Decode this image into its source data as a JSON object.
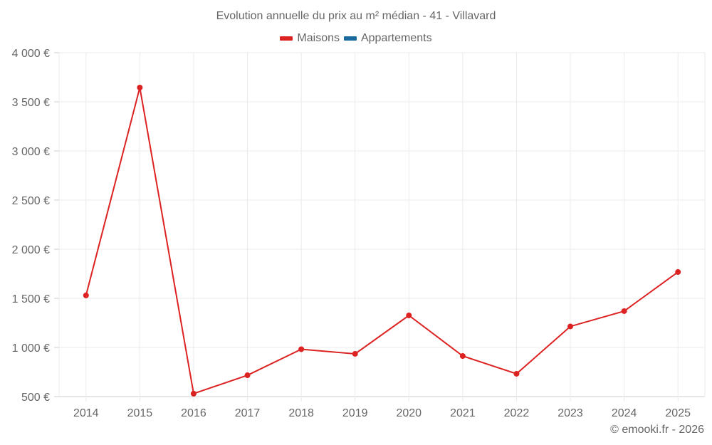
{
  "chart_data": {
    "type": "line",
    "title": "Evolution annuelle du prix au m² médian - 41 - Villavard",
    "xlabel": "",
    "ylabel": "",
    "categories": [
      "2014",
      "2015",
      "2016",
      "2017",
      "2018",
      "2019",
      "2020",
      "2021",
      "2022",
      "2023",
      "2024",
      "2025"
    ],
    "series": [
      {
        "name": "Maisons",
        "color": "#dd2222",
        "values": [
          1530,
          3645,
          530,
          717,
          982,
          935,
          1326,
          913,
          732,
          1214,
          1370,
          1768
        ]
      },
      {
        "name": "Appartements",
        "color": "#1a6aa0",
        "values": []
      }
    ],
    "ylim": [
      500,
      4000
    ],
    "yticks": [
      500,
      1000,
      1500,
      2000,
      2500,
      3000,
      3500,
      4000
    ],
    "ytick_labels": [
      "500 €",
      "1 000 €",
      "1 500 €",
      "2 000 €",
      "2 500 €",
      "3 000 €",
      "3 500 €",
      "4 000 €"
    ],
    "grid": true,
    "legend_position": "top"
  },
  "legend": {
    "maisons": "Maisons",
    "appartements": "Appartements",
    "maisons_color": "#dd2222",
    "appartements_color": "#1a6aa0"
  },
  "credit": "© emooki.fr - 2026"
}
